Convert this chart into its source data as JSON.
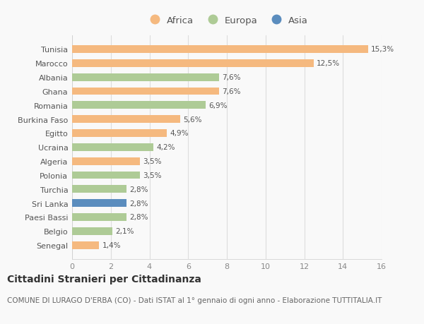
{
  "countries": [
    "Tunisia",
    "Marocco",
    "Albania",
    "Ghana",
    "Romania",
    "Burkina Faso",
    "Egitto",
    "Ucraina",
    "Algeria",
    "Polonia",
    "Turchia",
    "Sri Lanka",
    "Paesi Bassi",
    "Belgio",
    "Senegal"
  ],
  "values": [
    15.3,
    12.5,
    7.6,
    7.6,
    6.9,
    5.6,
    4.9,
    4.2,
    3.5,
    3.5,
    2.8,
    2.8,
    2.8,
    2.1,
    1.4
  ],
  "labels": [
    "15,3%",
    "12,5%",
    "7,6%",
    "7,6%",
    "6,9%",
    "5,6%",
    "4,9%",
    "4,2%",
    "3,5%",
    "3,5%",
    "2,8%",
    "2,8%",
    "2,8%",
    "2,1%",
    "1,4%"
  ],
  "continents": [
    "Africa",
    "Africa",
    "Europa",
    "Africa",
    "Europa",
    "Africa",
    "Africa",
    "Europa",
    "Africa",
    "Europa",
    "Europa",
    "Asia",
    "Europa",
    "Europa",
    "Africa"
  ],
  "colors": {
    "Africa": "#F5B97F",
    "Europa": "#AECB96",
    "Asia": "#5B8DBE"
  },
  "xlim": [
    0,
    16
  ],
  "xticks": [
    0,
    2,
    4,
    6,
    8,
    10,
    12,
    14,
    16
  ],
  "title": "Cittadini Stranieri per Cittadinanza",
  "subtitle": "COMUNE DI LURAGO D'ERBA (CO) - Dati ISTAT al 1° gennaio di ogni anno - Elaborazione TUTTITALIA.IT",
  "bg_color": "#f9f9f9",
  "bar_height": 0.55,
  "label_fontsize": 7.5,
  "tick_fontsize": 8,
  "title_fontsize": 10,
  "subtitle_fontsize": 7.5
}
